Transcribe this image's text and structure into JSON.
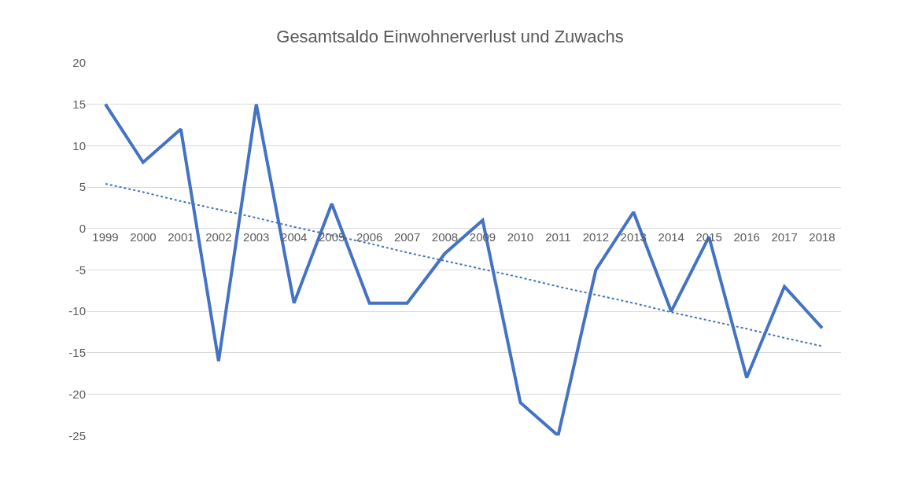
{
  "chart_data": {
    "type": "line",
    "title": "Gesamtsaldo Einwohnerverlust und Zuwachs",
    "categories": [
      "1999",
      "2000",
      "2001",
      "2002",
      "2003",
      "2004",
      "2005",
      "2006",
      "2007",
      "2008",
      "2009",
      "2010",
      "2011",
      "2012",
      "2013",
      "2014",
      "2015",
      "2016",
      "2017",
      "2018"
    ],
    "series": [
      {
        "color": "#4472c4",
        "values": [
          15,
          8,
          12,
          -16,
          15,
          -9,
          3,
          -9,
          -9,
          -3,
          1,
          -21,
          -25,
          -5,
          2,
          -10,
          -1,
          -18,
          -7,
          -12
        ]
      },
      {
        "type": "line",
        "color": "#4472c4",
        "line_style": "dotted",
        "values": [
          5.4,
          4.4,
          3.3,
          2.3,
          1.3,
          0.2,
          -0.8,
          -1.8,
          -2.9,
          -3.9,
          -4.9,
          -5.9,
          -7.0,
          -8.0,
          -9.0,
          -10.1,
          -11.1,
          -12.1,
          -13.2,
          -14.2
        ]
      }
    ],
    "ylim": [
      -25,
      20
    ],
    "yticks": [
      -25,
      -20,
      -15,
      -10,
      -5,
      0,
      5,
      10,
      15,
      20
    ],
    "grid": "y",
    "legend": false,
    "marker": "none"
  }
}
